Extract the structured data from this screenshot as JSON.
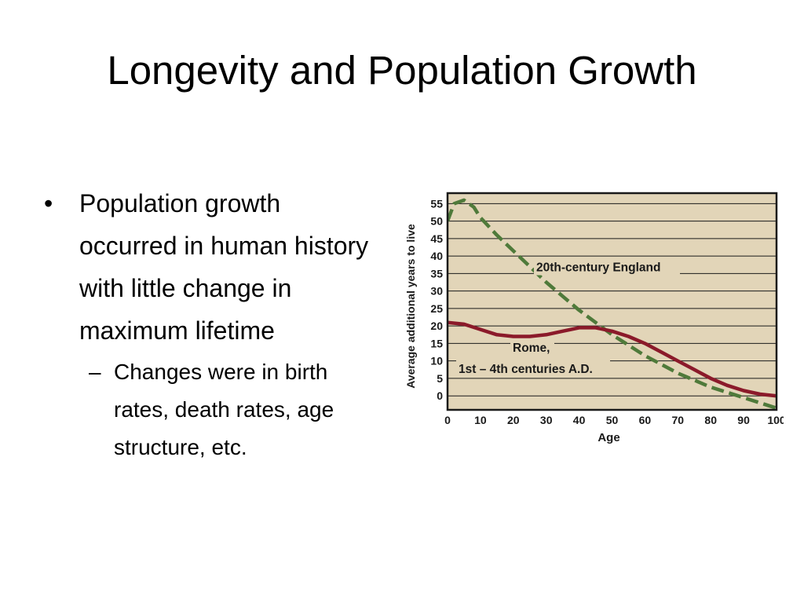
{
  "slide": {
    "title": "Longevity and Population Growth",
    "bullet_main": "Population growth occurred in human history with little change in maximum lifetime",
    "bullet_marker": "•",
    "sub_bullet": "Changes were in birth rates, death rates, age structure, etc.",
    "sub_marker": "–"
  },
  "chart_data": {
    "type": "line",
    "title": "",
    "xlabel": "Age",
    "ylabel": "Average additional years to live",
    "xlim": [
      0,
      100
    ],
    "ylim": [
      -4,
      58
    ],
    "xticks": [
      0,
      10,
      20,
      30,
      40,
      50,
      60,
      70,
      80,
      90,
      100
    ],
    "yticks": [
      0,
      5,
      10,
      15,
      20,
      25,
      30,
      35,
      40,
      45,
      50,
      55
    ],
    "grid": "horizontal",
    "background": "#e2d5b8",
    "series": [
      {
        "name": "20th-century England",
        "color": "#4f7a3a",
        "style": "dashed",
        "x": [
          0,
          2,
          5,
          8,
          10,
          15,
          20,
          25,
          30,
          35,
          40,
          45,
          50,
          55,
          60,
          65,
          70,
          75,
          80,
          85,
          90,
          95,
          100
        ],
        "y": [
          50,
          55,
          56,
          54,
          51,
          46,
          41.5,
          37,
          32.5,
          28.5,
          24.5,
          21,
          17.5,
          14.5,
          11.5,
          9,
          6.5,
          4.5,
          2.5,
          1,
          -0.5,
          -2,
          -3.5
        ]
      },
      {
        "name": "Rome,\n1st – 4th centuries A.D.",
        "color": "#8b1a2a",
        "style": "solid",
        "x": [
          0,
          5,
          10,
          15,
          20,
          25,
          30,
          35,
          40,
          45,
          50,
          55,
          60,
          65,
          70,
          75,
          80,
          85,
          90,
          95,
          100
        ],
        "y": [
          21,
          20.5,
          19,
          17.5,
          17,
          17,
          17.5,
          18.5,
          19.5,
          19.5,
          18.5,
          17,
          15,
          12.5,
          10,
          7.5,
          5,
          3,
          1.5,
          0.5,
          0
        ]
      }
    ],
    "annotations": [
      {
        "text": "20th-century England",
        "series": 0
      },
      {
        "text": "Rome,",
        "series": 1
      },
      {
        "text": "1st – 4th centuries A.D.",
        "series": 1
      }
    ]
  }
}
